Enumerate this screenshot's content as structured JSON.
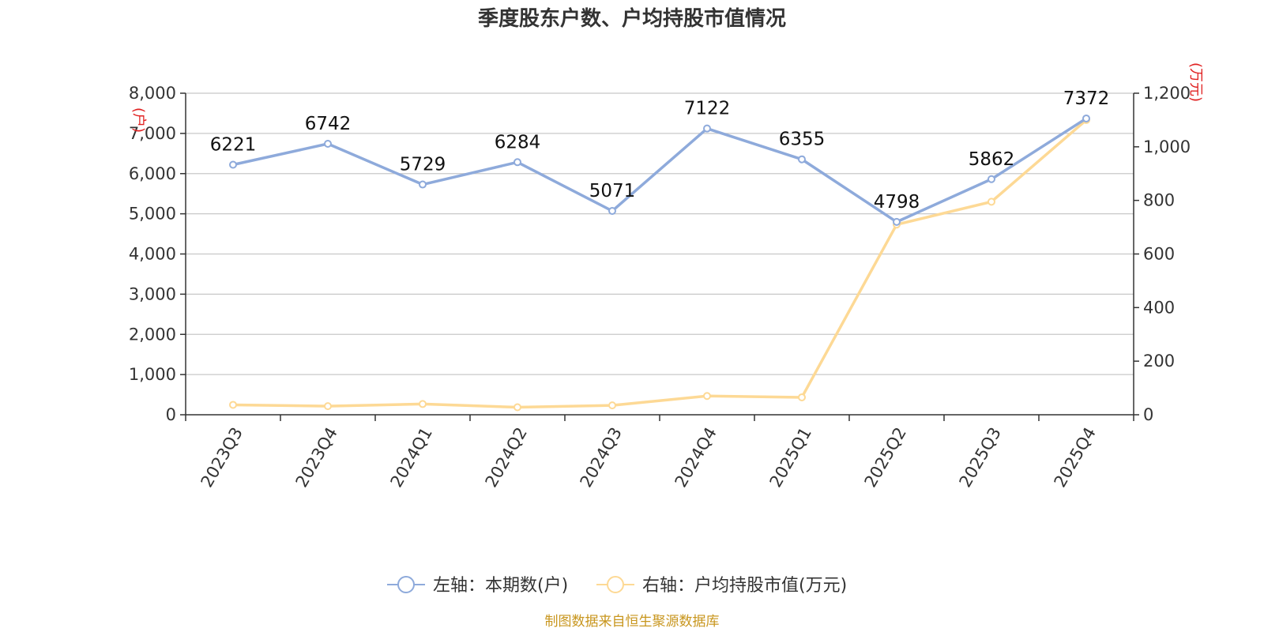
{
  "chart_data": {
    "type": "line",
    "title": "季度股东户数、户均持股市值情况",
    "categories": [
      "2023Q3",
      "2023Q4",
      "2024Q1",
      "2024Q2",
      "2024Q3",
      "2024Q4",
      "2025Q1",
      "2025Q2",
      "2025Q3",
      "2025Q4"
    ],
    "series": [
      {
        "name": "左轴：本期数(户)",
        "axis": "left",
        "color": "#8eaadb",
        "values": [
          6221,
          6742,
          5729,
          6284,
          5071,
          7122,
          6355,
          4798,
          5862,
          7372
        ],
        "show_labels": true
      },
      {
        "name": "右轴：户均持股市值(万元)",
        "axis": "right",
        "color": "#fdd995",
        "values": [
          37,
          32,
          40,
          28,
          35,
          70,
          65,
          710,
          795,
          1100
        ],
        "show_labels": false
      }
    ],
    "y_left": {
      "unit": "(户)",
      "min": 0,
      "max": 8000,
      "ticks": [
        "0",
        "1,000",
        "2,000",
        "3,000",
        "4,000",
        "5,000",
        "6,000",
        "7,000",
        "8,000"
      ]
    },
    "y_right": {
      "unit": "(万元)",
      "min": 0,
      "max": 1200,
      "ticks": [
        "0",
        "200",
        "400",
        "600",
        "800",
        "1,000",
        "1,200"
      ]
    },
    "grid": true,
    "legend_position": "bottom"
  },
  "source": "制图数据来自恒生聚源数据库"
}
